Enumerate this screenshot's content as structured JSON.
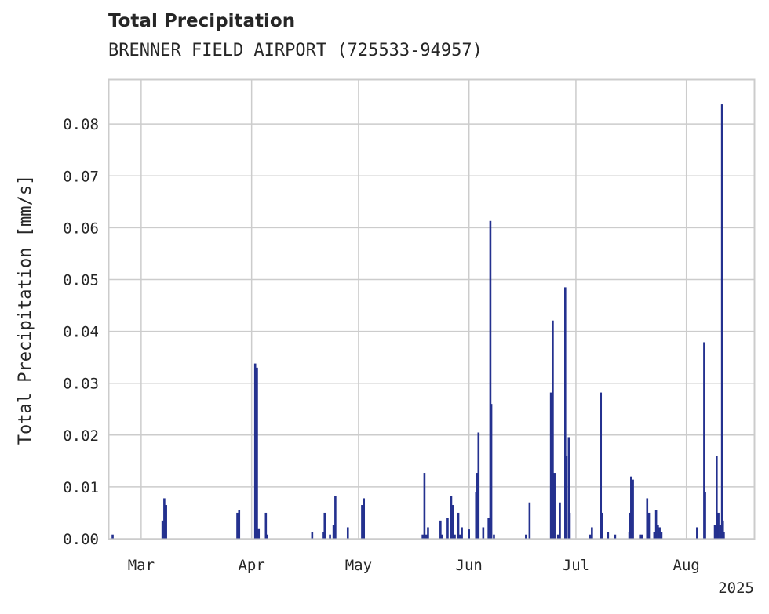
{
  "title": "Total Precipitation",
  "subtitle": "BRENNER FIELD AIRPORT (725533-94957)",
  "colors": {
    "bar": "#24318f",
    "grid": "#cccccc",
    "axis": "#cccccc",
    "text": "#262626"
  },
  "chart_data": {
    "type": "bar",
    "ylabel": "Total Precipitation [mm/s]",
    "xlabel": "",
    "ylim": [
      0,
      0.0885
    ],
    "xlim": [
      "2025-02-20",
      "2025-08-20"
    ],
    "yticks": [
      0.0,
      0.01,
      0.02,
      0.03,
      0.04,
      0.05,
      0.06,
      0.07,
      0.08
    ],
    "ytick_labels": [
      "0.00",
      "0.01",
      "0.02",
      "0.03",
      "0.04",
      "0.05",
      "0.06",
      "0.07",
      "0.08"
    ],
    "xticks": [
      "2025-03-01",
      "2025-04-01",
      "2025-05-01",
      "2025-06-01",
      "2025-07-01",
      "2025-08-01"
    ],
    "xtick_labels": [
      "Mar",
      "Apr",
      "May",
      "Jun",
      "Jul",
      "Aug"
    ],
    "year_label": "2025",
    "grid": true,
    "series": [
      {
        "points": [
          {
            "x": "2025-02-21",
            "y": 0.0008
          },
          {
            "x": "2025-03-07",
            "y": 0.0035
          },
          {
            "x": "2025-03-07T12:00",
            "y": 0.0078
          },
          {
            "x": "2025-03-08",
            "y": 0.0065
          },
          {
            "x": "2025-03-28",
            "y": 0.005
          },
          {
            "x": "2025-03-28T12:00",
            "y": 0.0055
          },
          {
            "x": "2025-04-02",
            "y": 0.0338
          },
          {
            "x": "2025-04-02T12:00",
            "y": 0.033
          },
          {
            "x": "2025-04-03",
            "y": 0.002
          },
          {
            "x": "2025-04-05",
            "y": 0.005
          },
          {
            "x": "2025-04-05T06:00",
            "y": 0.0008
          },
          {
            "x": "2025-04-18",
            "y": 0.0013
          },
          {
            "x": "2025-04-21",
            "y": 0.0013
          },
          {
            "x": "2025-04-21T12:00",
            "y": 0.005
          },
          {
            "x": "2025-04-23",
            "y": 0.0008
          },
          {
            "x": "2025-04-24",
            "y": 0.0027
          },
          {
            "x": "2025-04-24T12:00",
            "y": 0.0083
          },
          {
            "x": "2025-04-28",
            "y": 0.0022
          },
          {
            "x": "2025-05-02",
            "y": 0.0065
          },
          {
            "x": "2025-05-02T12:00",
            "y": 0.0078
          },
          {
            "x": "2025-05-19",
            "y": 0.0008
          },
          {
            "x": "2025-05-19T12:00",
            "y": 0.0127
          },
          {
            "x": "2025-05-20",
            "y": 0.0008
          },
          {
            "x": "2025-05-20T12:00",
            "y": 0.0022
          },
          {
            "x": "2025-05-24",
            "y": 0.0035
          },
          {
            "x": "2025-05-24T12:00",
            "y": 0.0008
          },
          {
            "x": "2025-05-26",
            "y": 0.004
          },
          {
            "x": "2025-05-27",
            "y": 0.0083
          },
          {
            "x": "2025-05-27T12:00",
            "y": 0.0065
          },
          {
            "x": "2025-05-28",
            "y": 0.0008
          },
          {
            "x": "2025-05-29",
            "y": 0.005
          },
          {
            "x": "2025-05-29T12:00",
            "y": 0.0008
          },
          {
            "x": "2025-05-30",
            "y": 0.0022
          },
          {
            "x": "2025-06-01",
            "y": 0.0018
          },
          {
            "x": "2025-06-03",
            "y": 0.009
          },
          {
            "x": "2025-06-03T08:00",
            "y": 0.0127
          },
          {
            "x": "2025-06-03T16:00",
            "y": 0.0205
          },
          {
            "x": "2025-06-05",
            "y": 0.0022
          },
          {
            "x": "2025-06-06T12:00",
            "y": 0.004
          },
          {
            "x": "2025-06-07",
            "y": 0.0613
          },
          {
            "x": "2025-06-07T06:00",
            "y": 0.026
          },
          {
            "x": "2025-06-08",
            "y": 0.0008
          },
          {
            "x": "2025-06-17",
            "y": 0.0008
          },
          {
            "x": "2025-06-18",
            "y": 0.007
          },
          {
            "x": "2025-06-24",
            "y": 0.0282
          },
          {
            "x": "2025-06-24T12:00",
            "y": 0.0421
          },
          {
            "x": "2025-06-25",
            "y": 0.0127
          },
          {
            "x": "2025-06-26",
            "y": 0.0008
          },
          {
            "x": "2025-06-26T12:00",
            "y": 0.007
          },
          {
            "x": "2025-06-28",
            "y": 0.0485
          },
          {
            "x": "2025-06-28T08:00",
            "y": 0.016
          },
          {
            "x": "2025-06-29",
            "y": 0.0196
          },
          {
            "x": "2025-06-29T06:00",
            "y": 0.005
          },
          {
            "x": "2025-07-05",
            "y": 0.0008
          },
          {
            "x": "2025-07-05T12:00",
            "y": 0.0022
          },
          {
            "x": "2025-07-08",
            "y": 0.0282
          },
          {
            "x": "2025-07-08T06:00",
            "y": 0.005
          },
          {
            "x": "2025-07-10",
            "y": 0.0013
          },
          {
            "x": "2025-07-12",
            "y": 0.0008
          },
          {
            "x": "2025-07-16",
            "y": 0.0013
          },
          {
            "x": "2025-07-16T06:00",
            "y": 0.005
          },
          {
            "x": "2025-07-16T12:00",
            "y": 0.012
          },
          {
            "x": "2025-07-17",
            "y": 0.0114
          },
          {
            "x": "2025-07-19",
            "y": 0.0008
          },
          {
            "x": "2025-07-19T12:00",
            "y": 0.0008
          },
          {
            "x": "2025-07-21",
            "y": 0.0078
          },
          {
            "x": "2025-07-21T12:00",
            "y": 0.005
          },
          {
            "x": "2025-07-23",
            "y": 0.0013
          },
          {
            "x": "2025-07-23T12:00",
            "y": 0.0055
          },
          {
            "x": "2025-07-24",
            "y": 0.0027
          },
          {
            "x": "2025-07-24T12:00",
            "y": 0.0022
          },
          {
            "x": "2025-07-25",
            "y": 0.0013
          },
          {
            "x": "2025-08-04",
            "y": 0.0022
          },
          {
            "x": "2025-08-06",
            "y": 0.0379
          },
          {
            "x": "2025-08-06T06:00",
            "y": 0.009
          },
          {
            "x": "2025-08-09",
            "y": 0.0027
          },
          {
            "x": "2025-08-09T12:00",
            "y": 0.016
          },
          {
            "x": "2025-08-10",
            "y": 0.005
          },
          {
            "x": "2025-08-10T12:00",
            "y": 0.0027
          },
          {
            "x": "2025-08-11",
            "y": 0.0838
          },
          {
            "x": "2025-08-11T06:00",
            "y": 0.0035
          },
          {
            "x": "2025-08-11T12:00",
            "y": 0.0013
          }
        ]
      }
    ]
  }
}
